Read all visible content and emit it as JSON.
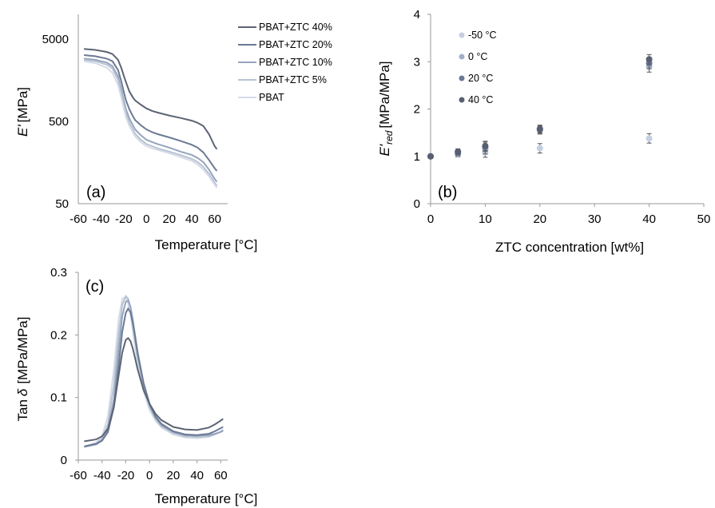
{
  "chart_data": [
    {
      "id": "a",
      "type": "line",
      "panel_label": "(a)",
      "xlabel": "Temperature [°C]",
      "ylabel_main": "E'",
      "ylabel_unit": "[MPa]",
      "x_ticks": [
        "-60",
        "-40",
        "-20",
        "0",
        "20",
        "40",
        "60"
      ],
      "y_ticks": [
        "50",
        "500",
        "5000"
      ],
      "y_scale": "log",
      "xlim": [
        -60,
        65
      ],
      "ylim": [
        50,
        10000
      ],
      "legend_position": "top-right",
      "series": [
        {
          "name": "PBAT+ZTC 40%",
          "color": "#5c6474",
          "x": [
            -55,
            -45,
            -35,
            -30,
            -25,
            -22,
            -20,
            -18,
            -15,
            -12,
            -10,
            -5,
            0,
            5,
            10,
            20,
            30,
            40,
            45,
            50,
            55,
            60,
            62
          ],
          "y": [
            3800,
            3700,
            3500,
            3300,
            2800,
            2200,
            1800,
            1500,
            1150,
            980,
            900,
            800,
            720,
            670,
            640,
            590,
            550,
            510,
            480,
            440,
            350,
            250,
            230
          ]
        },
        {
          "name": "PBAT+ZTC 20%",
          "color": "#6b7a95",
          "x": [
            -55,
            -45,
            -35,
            -30,
            -25,
            -22,
            -20,
            -18,
            -15,
            -12,
            -10,
            -5,
            0,
            5,
            10,
            20,
            30,
            40,
            45,
            50,
            55,
            60,
            62
          ],
          "y": [
            3200,
            3100,
            2900,
            2700,
            2100,
            1500,
            1150,
            900,
            700,
            580,
            520,
            450,
            400,
            370,
            350,
            320,
            290,
            260,
            240,
            210,
            170,
            135,
            125
          ]
        },
        {
          "name": "PBAT+ZTC 10%",
          "color": "#95a4bd",
          "x": [
            -55,
            -45,
            -35,
            -30,
            -25,
            -22,
            -20,
            -18,
            -15,
            -12,
            -10,
            -5,
            0,
            5,
            10,
            20,
            30,
            40,
            45,
            50,
            55,
            60,
            62
          ],
          "y": [
            2900,
            2800,
            2600,
            2350,
            1750,
            1200,
            900,
            700,
            540,
            450,
            400,
            340,
            300,
            280,
            265,
            240,
            215,
            195,
            180,
            160,
            130,
            100,
            92
          ]
        },
        {
          "name": "PBAT+ZTC 5%",
          "color": "#b7c3d3",
          "x": [
            -55,
            -45,
            -35,
            -30,
            -25,
            -22,
            -20,
            -18,
            -15,
            -12,
            -10,
            -5,
            0,
            5,
            10,
            20,
            30,
            40,
            45,
            50,
            55,
            60,
            62
          ],
          "y": [
            2800,
            2700,
            2450,
            2200,
            1600,
            1080,
            800,
            620,
            480,
            400,
            355,
            300,
            265,
            250,
            235,
            215,
            195,
            175,
            160,
            140,
            115,
            90,
            82
          ]
        },
        {
          "name": "PBAT",
          "color": "#d6dbe7",
          "x": [
            -55,
            -45,
            -35,
            -30,
            -25,
            -22,
            -20,
            -18,
            -15,
            -12,
            -10,
            -5,
            0,
            5,
            10,
            20,
            30,
            40,
            45,
            50,
            55,
            60,
            62
          ],
          "y": [
            2700,
            2550,
            2250,
            1950,
            1380,
            950,
            720,
            560,
            440,
            370,
            330,
            280,
            250,
            235,
            225,
            205,
            185,
            165,
            150,
            130,
            108,
            85,
            78
          ]
        }
      ]
    },
    {
      "id": "b",
      "type": "scatter",
      "panel_label": "(b)",
      "xlabel": "ZTC concentration [wt%]",
      "ylabel_main": "E'",
      "ylabel_sub": "red",
      "ylabel_unit": "[MPa/MPa]",
      "x_ticks": [
        "0",
        "10",
        "20",
        "30",
        "40",
        "50"
      ],
      "y_ticks": [
        "0",
        "1",
        "2",
        "3",
        "4"
      ],
      "xlim": [
        0,
        50
      ],
      "ylim": [
        0,
        4
      ],
      "legend_position": "top-left",
      "series": [
        {
          "name": "-50 °C",
          "color": "#c5cfdf",
          "x": [
            0,
            5,
            10,
            20,
            40
          ],
          "y": [
            1.0,
            1.05,
            1.08,
            1.17,
            1.38
          ],
          "err": [
            0.03,
            0.06,
            0.1,
            0.1,
            0.1
          ]
        },
        {
          "name": "0 °C",
          "color": "#a1afc6",
          "x": [
            0,
            5,
            10,
            20,
            40
          ],
          "y": [
            1.0,
            1.05,
            1.15,
            1.55,
            2.9
          ],
          "err": [
            0.03,
            0.06,
            0.1,
            0.08,
            0.12
          ]
        },
        {
          "name": "20 °C",
          "color": "#6b7996",
          "x": [
            0,
            5,
            10,
            20,
            40
          ],
          "y": [
            1.0,
            1.08,
            1.2,
            1.57,
            2.97
          ],
          "err": [
            0.03,
            0.06,
            0.1,
            0.08,
            0.12
          ]
        },
        {
          "name": "40 °C",
          "color": "#575f70",
          "x": [
            0,
            5,
            10,
            20,
            40
          ],
          "y": [
            1.0,
            1.1,
            1.22,
            1.58,
            3.05
          ],
          "err": [
            0.03,
            0.06,
            0.1,
            0.08,
            0.1
          ]
        }
      ]
    },
    {
      "id": "c",
      "type": "line",
      "panel_label": "(c)",
      "xlabel": "Temperature [°C]",
      "ylabel_main": "Tan",
      "ylabel_symbol": "δ",
      "ylabel_unit": "[MPa/MPa]",
      "x_ticks": [
        "-60",
        "-40",
        "-20",
        "0",
        "20",
        "40",
        "60"
      ],
      "y_ticks": [
        "0",
        "0.1",
        "0.2",
        "0.3"
      ],
      "xlim": [
        -60,
        65
      ],
      "ylim": [
        0,
        0.3
      ],
      "series": [
        {
          "name": "PBAT+ZTC 40%",
          "color": "#5c6474",
          "x": [
            -55,
            -45,
            -40,
            -35,
            -30,
            -26,
            -23,
            -20,
            -18,
            -16,
            -14,
            -12,
            -10,
            -5,
            0,
            5,
            10,
            20,
            30,
            40,
            50,
            55,
            60,
            62
          ],
          "y": [
            0.03,
            0.033,
            0.038,
            0.05,
            0.085,
            0.135,
            0.172,
            0.192,
            0.195,
            0.19,
            0.178,
            0.162,
            0.145,
            0.112,
            0.09,
            0.074,
            0.064,
            0.053,
            0.049,
            0.048,
            0.052,
            0.057,
            0.063,
            0.066
          ]
        },
        {
          "name": "PBAT+ZTC 20%",
          "color": "#6b7a95",
          "x": [
            -55,
            -45,
            -40,
            -35,
            -30,
            -26,
            -23,
            -20,
            -18,
            -16,
            -14,
            -12,
            -10,
            -5,
            0,
            5,
            10,
            20,
            30,
            40,
            50,
            55,
            60,
            62
          ],
          "y": [
            0.022,
            0.026,
            0.031,
            0.045,
            0.085,
            0.15,
            0.205,
            0.235,
            0.242,
            0.236,
            0.218,
            0.195,
            0.17,
            0.123,
            0.09,
            0.07,
            0.058,
            0.046,
            0.041,
            0.04,
            0.042,
            0.046,
            0.051,
            0.053
          ]
        },
        {
          "name": "PBAT+ZTC 10%",
          "color": "#95a4bd",
          "x": [
            -55,
            -45,
            -40,
            -35,
            -30,
            -26,
            -23,
            -20,
            -18,
            -16,
            -14,
            -12,
            -10,
            -5,
            0,
            5,
            10,
            20,
            30,
            40,
            50,
            55,
            60,
            62
          ],
          "y": [
            0.021,
            0.025,
            0.031,
            0.048,
            0.098,
            0.175,
            0.23,
            0.253,
            0.255,
            0.245,
            0.224,
            0.198,
            0.173,
            0.123,
            0.088,
            0.068,
            0.056,
            0.045,
            0.04,
            0.039,
            0.04,
            0.042,
            0.045,
            0.047
          ]
        },
        {
          "name": "PBAT+ZTC 5%",
          "color": "#b7c3d3",
          "x": [
            -55,
            -45,
            -40,
            -35,
            -30,
            -26,
            -23,
            -20,
            -18,
            -16,
            -14,
            -12,
            -10,
            -5,
            0,
            5,
            10,
            20,
            30,
            40,
            50,
            55,
            60,
            62
          ],
          "y": [
            0.021,
            0.026,
            0.034,
            0.058,
            0.12,
            0.2,
            0.248,
            0.262,
            0.258,
            0.243,
            0.218,
            0.19,
            0.165,
            0.117,
            0.085,
            0.066,
            0.054,
            0.043,
            0.038,
            0.037,
            0.038,
            0.041,
            0.045,
            0.048
          ]
        },
        {
          "name": "PBAT",
          "color": "#d6dbe7",
          "x": [
            -55,
            -45,
            -40,
            -35,
            -30,
            -26,
            -23,
            -20,
            -18,
            -16,
            -14,
            -12,
            -10,
            -5,
            0,
            5,
            10,
            20,
            30,
            40,
            50,
            55,
            60,
            62
          ],
          "y": [
            0.021,
            0.028,
            0.038,
            0.07,
            0.145,
            0.225,
            0.258,
            0.26,
            0.25,
            0.232,
            0.205,
            0.178,
            0.155,
            0.11,
            0.08,
            0.063,
            0.052,
            0.041,
            0.036,
            0.035,
            0.037,
            0.041,
            0.046,
            0.049
          ]
        }
      ]
    }
  ]
}
